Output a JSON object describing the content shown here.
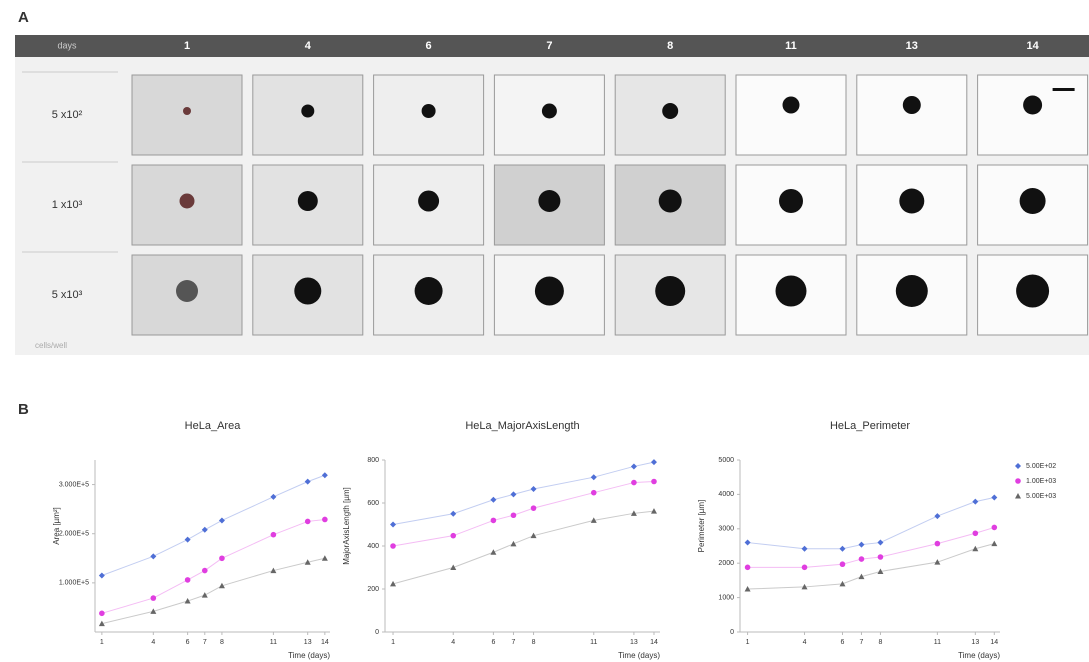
{
  "panel_a": {
    "label": "A",
    "header_label": "days",
    "days": [
      1,
      4,
      6,
      7,
      8,
      11,
      13,
      14
    ],
    "rows": [
      "5 x10²",
      "1 x10³",
      "5 x10³"
    ],
    "footer": "cells/well"
  },
  "panel_b": {
    "label": "B"
  },
  "chart_data": [
    {
      "type": "line",
      "title": "HeLa_Area",
      "y_label": "Area [µm²]",
      "x_label": "Time (days)",
      "x": [
        1,
        4,
        6,
        7,
        8,
        11,
        13,
        14
      ],
      "xlim": [
        0.6,
        14.3
      ],
      "xticks": [
        1,
        4,
        6,
        7,
        8,
        11,
        13,
        14
      ],
      "ylim": [
        0,
        350000
      ],
      "yticks": [
        {
          "value": 100000,
          "label": "1.000E+5"
        },
        {
          "value": 200000,
          "label": "2.000E+5"
        },
        {
          "value": 300000,
          "label": "3.000E+5"
        }
      ],
      "series": [
        {
          "color": "#4f6fd6",
          "values": [
            115000,
            154000,
            188000,
            208000,
            227000,
            275000,
            306000,
            319000
          ]
        },
        {
          "color": "#e03ee0",
          "values": [
            38000,
            69000,
            106000,
            125000,
            150000,
            198000,
            225000,
            229000
          ]
        },
        {
          "color": "#666666",
          "values": [
            17000,
            42000,
            63000,
            75000,
            94000,
            125000,
            142000,
            150000
          ]
        }
      ]
    },
    {
      "type": "line",
      "title": "HeLa_MajorAxisLength",
      "y_label": "MajorAxisLength [µm]",
      "x_label": "Time (days)",
      "x": [
        1,
        4,
        6,
        7,
        8,
        11,
        13,
        14
      ],
      "xlim": [
        0.6,
        14.3
      ],
      "xticks": [
        1,
        4,
        6,
        7,
        8,
        11,
        13,
        14
      ],
      "ylim": [
        0,
        800
      ],
      "yticks": [
        0,
        200,
        400,
        600,
        800
      ],
      "series": [
        {
          "color": "#4f6fd6",
          "values": [
            500,
            550,
            615,
            640,
            665,
            720,
            770,
            790
          ]
        },
        {
          "color": "#e03ee0",
          "values": [
            400,
            448,
            519,
            543,
            576,
            648,
            695,
            700
          ]
        },
        {
          "color": "#666666",
          "values": [
            224,
            300,
            371,
            410,
            448,
            519,
            552,
            562
          ]
        }
      ]
    },
    {
      "type": "line",
      "title": "HeLa_Perimeter",
      "y_label": "Perimeter [µm]",
      "x_label": "Time (days)",
      "x": [
        1,
        4,
        6,
        7,
        8,
        11,
        13,
        14
      ],
      "xlim": [
        0.6,
        14.3
      ],
      "xticks": [
        1,
        4,
        6,
        7,
        8,
        11,
        13,
        14
      ],
      "ylim": [
        0,
        5000
      ],
      "yticks": [
        0,
        1000,
        2000,
        3000,
        4000,
        5000
      ],
      "legend": "upper right",
      "series": [
        {
          "name": "5.00E+02",
          "color": "#4f6fd6",
          "values": [
            2600,
            2420,
            2420,
            2540,
            2600,
            3370,
            3790,
            3910
          ]
        },
        {
          "name": "1.00E+03",
          "color": "#e03ee0",
          "values": [
            1880,
            1880,
            1970,
            2120,
            2180,
            2570,
            2870,
            3040
          ]
        },
        {
          "name": "5.00E+03",
          "color": "#666666",
          "values": [
            1250,
            1310,
            1400,
            1610,
            1760,
            2030,
            2420,
            2570
          ]
        }
      ]
    }
  ]
}
